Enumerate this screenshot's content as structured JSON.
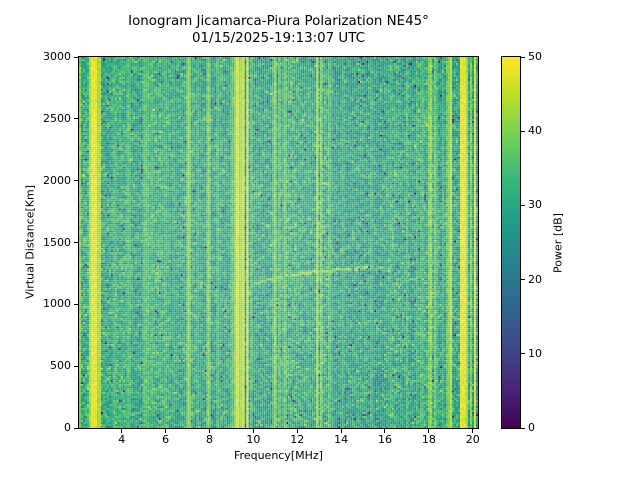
{
  "chart_data": {
    "type": "heatmap",
    "title": "Ionogram Jicamarca-Piura Polarization NE45°",
    "subtitle": "01/15/2025-19:13:07 UTC",
    "xlabel": "Frequency[MHz]",
    "ylabel": "Virtual Distance[Km]",
    "xlim": [
      2.05,
      20.24
    ],
    "ylim": [
      0,
      3000
    ],
    "xticks": [
      4,
      6,
      8,
      10,
      12,
      14,
      16,
      18,
      20
    ],
    "yticks": [
      0,
      500,
      1000,
      1500,
      2000,
      2500,
      3000
    ],
    "grid": false,
    "colorbar": {
      "label": "Power [dB]",
      "min": 0,
      "max": 50,
      "ticks": [
        0,
        10,
        20,
        30,
        40,
        50
      ],
      "colormap": "viridis",
      "stops": [
        "#440154",
        "#482878",
        "#3e4989",
        "#31688e",
        "#26828e",
        "#1f9e89",
        "#35b779",
        "#6ece58",
        "#b5de2b",
        "#fde725"
      ]
    },
    "background_noise": {
      "mean_db": 30,
      "std_db": 4.5,
      "dark_speckle_prob": 0.022,
      "dark_speckle_range_db": [
        2,
        18
      ]
    },
    "enhanced_zones": [
      {
        "f_start": 2.4,
        "f_end": 6.2,
        "boost_db": 1.6
      },
      {
        "f_start": 10.6,
        "f_end": 13.6,
        "boost_db": 0.8
      }
    ],
    "rfi_stripes": [
      {
        "f_mhz": 2.1,
        "halfwidth_mhz": 0.06,
        "peak_db": 44
      },
      {
        "f_mhz": 2.65,
        "halfwidth_mhz": 0.1,
        "peak_db": 50
      },
      {
        "f_mhz": 2.8,
        "halfwidth_mhz": 0.12,
        "peak_db": 50
      },
      {
        "f_mhz": 3.0,
        "halfwidth_mhz": 0.08,
        "peak_db": 46
      },
      {
        "f_mhz": 3.7,
        "halfwidth_mhz": 0.12,
        "peak_db": 37
      },
      {
        "f_mhz": 4.3,
        "halfwidth_mhz": 0.15,
        "peak_db": 38
      },
      {
        "f_mhz": 5.1,
        "halfwidth_mhz": 0.18,
        "peak_db": 39
      },
      {
        "f_mhz": 5.4,
        "halfwidth_mhz": 0.1,
        "peak_db": 37
      },
      {
        "f_mhz": 6.0,
        "halfwidth_mhz": 0.12,
        "peak_db": 37
      },
      {
        "f_mhz": 6.4,
        "halfwidth_mhz": 0.1,
        "peak_db": 36
      },
      {
        "f_mhz": 7.05,
        "halfwidth_mhz": 0.05,
        "peak_db": 47
      },
      {
        "f_mhz": 7.5,
        "halfwidth_mhz": 0.08,
        "peak_db": 37
      },
      {
        "f_mhz": 7.95,
        "halfwidth_mhz": 0.12,
        "peak_db": 43
      },
      {
        "f_mhz": 8.4,
        "halfwidth_mhz": 0.1,
        "peak_db": 39
      },
      {
        "f_mhz": 9.05,
        "halfwidth_mhz": 0.06,
        "peak_db": 45
      },
      {
        "f_mhz": 9.25,
        "halfwidth_mhz": 0.07,
        "peak_db": 50
      },
      {
        "f_mhz": 9.42,
        "halfwidth_mhz": 0.07,
        "peak_db": 50
      },
      {
        "f_mhz": 9.57,
        "halfwidth_mhz": 0.06,
        "peak_db": 49
      },
      {
        "f_mhz": 9.75,
        "halfwidth_mhz": 0.06,
        "peak_db": 50
      },
      {
        "f_mhz": 9.95,
        "halfwidth_mhz": 0.05,
        "peak_db": 45
      },
      {
        "f_mhz": 10.97,
        "halfwidth_mhz": 0.07,
        "peak_db": 45
      },
      {
        "f_mhz": 11.2,
        "halfwidth_mhz": 0.06,
        "peak_db": 41
      },
      {
        "f_mhz": 11.43,
        "halfwidth_mhz": 0.06,
        "peak_db": 42
      },
      {
        "f_mhz": 12.5,
        "halfwidth_mhz": 0.06,
        "peak_db": 38
      },
      {
        "f_mhz": 12.93,
        "halfwidth_mhz": 0.07,
        "peak_db": 46
      },
      {
        "f_mhz": 13.12,
        "halfwidth_mhz": 0.06,
        "peak_db": 44
      },
      {
        "f_mhz": 13.48,
        "halfwidth_mhz": 0.08,
        "peak_db": 40
      },
      {
        "f_mhz": 14.07,
        "halfwidth_mhz": 0.08,
        "peak_db": 37
      },
      {
        "f_mhz": 15.4,
        "halfwidth_mhz": 0.08,
        "peak_db": 37
      },
      {
        "f_mhz": 16.25,
        "halfwidth_mhz": 0.06,
        "peak_db": 36
      },
      {
        "f_mhz": 17.0,
        "halfwidth_mhz": 0.07,
        "peak_db": 39
      },
      {
        "f_mhz": 17.45,
        "halfwidth_mhz": 0.06,
        "peak_db": 37
      },
      {
        "f_mhz": 17.7,
        "halfwidth_mhz": 0.06,
        "peak_db": 42
      },
      {
        "f_mhz": 18.0,
        "halfwidth_mhz": 0.06,
        "peak_db": 43
      },
      {
        "f_mhz": 18.1,
        "halfwidth_mhz": 0.07,
        "peak_db": 45
      },
      {
        "f_mhz": 18.32,
        "halfwidth_mhz": 0.06,
        "peak_db": 42
      },
      {
        "f_mhz": 18.62,
        "halfwidth_mhz": 0.06,
        "peak_db": 37
      },
      {
        "f_mhz": 18.85,
        "halfwidth_mhz": 0.06,
        "peak_db": 41
      },
      {
        "f_mhz": 19.0,
        "halfwidth_mhz": 0.08,
        "peak_db": 47
      },
      {
        "f_mhz": 19.52,
        "halfwidth_mhz": 0.14,
        "peak_db": 50
      },
      {
        "f_mhz": 19.68,
        "halfwidth_mhz": 0.08,
        "peak_db": 50
      },
      {
        "f_mhz": 19.9,
        "halfwidth_mhz": 0.06,
        "peak_db": 44
      },
      {
        "f_mhz": 20.1,
        "halfwidth_mhz": 0.08,
        "peak_db": 49
      }
    ],
    "echo_trace": {
      "points_mhz_km": [
        [
          9.75,
          1145
        ],
        [
          10.2,
          1180
        ],
        [
          10.65,
          1205
        ],
        [
          11.2,
          1228
        ],
        [
          11.7,
          1240
        ],
        [
          12.3,
          1258
        ],
        [
          13.0,
          1272
        ],
        [
          13.7,
          1284
        ],
        [
          14.4,
          1294
        ],
        [
          15.1,
          1303
        ],
        [
          15.9,
          1312
        ]
      ],
      "peak_power_db": 45
    }
  }
}
